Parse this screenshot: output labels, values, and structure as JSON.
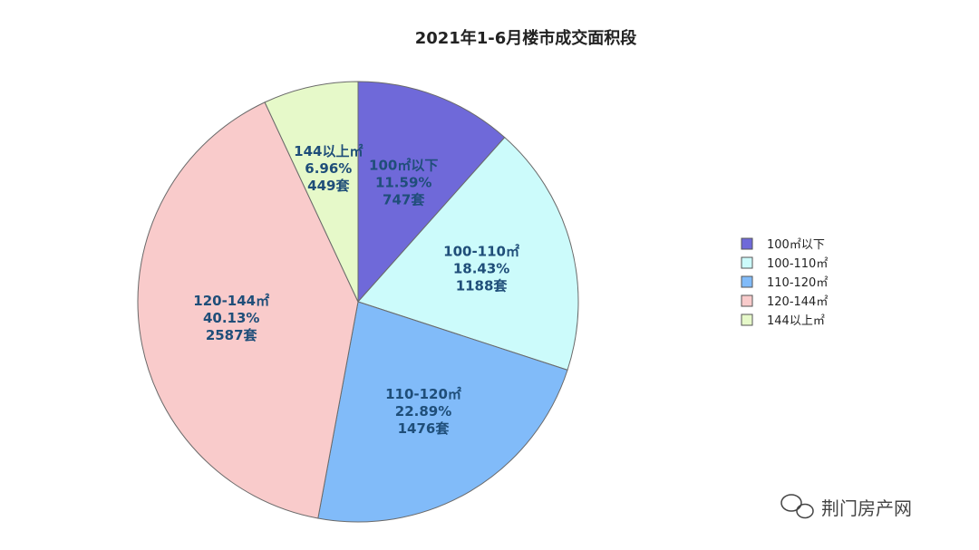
{
  "chart_data": {
    "type": "pie",
    "title": "2021年1-6月楼市成交面积段",
    "slices": [
      {
        "name": "100㎡以下",
        "label_lines": [
          "100㎡以下",
          "11.59%",
          "747套"
        ],
        "percent": 11.59,
        "count": 747,
        "color": "#6f69d9"
      },
      {
        "name": "100-110㎡",
        "label_lines": [
          "100-110㎡",
          "18.43%",
          "1188套"
        ],
        "percent": 18.43,
        "count": 1188,
        "color": "#ccfbfb"
      },
      {
        "name": "110-120㎡",
        "label_lines": [
          "110-120㎡",
          "22.89%",
          "1476套"
        ],
        "percent": 22.89,
        "count": 1476,
        "color": "#81bbf9"
      },
      {
        "name": "120-144㎡",
        "label_lines": [
          "120-144㎡",
          "40.13%",
          "2587套"
        ],
        "percent": 40.13,
        "count": 2587,
        "color": "#f9cbcb"
      },
      {
        "name": "144以上㎡",
        "label_lines": [
          "144以上㎡",
          "6.96%",
          "449套"
        ],
        "percent": 6.96,
        "count": 449,
        "color": "#e6f9c9"
      }
    ],
    "legend_position": "right"
  },
  "watermark": {
    "text": "荆门房产网"
  }
}
